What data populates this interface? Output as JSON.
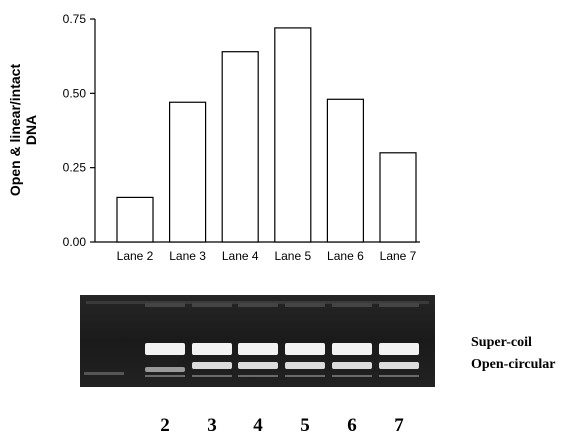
{
  "chart_data": {
    "type": "bar",
    "ylabel": "Open & linear/intact DNA",
    "ylabel_lines": [
      "Open & linear/intact",
      "DNA"
    ],
    "categories": [
      "Lane 2",
      "Lane 3",
      "Lane 4",
      "Lane 5",
      "Lane 6",
      "Lane 7"
    ],
    "values": [
      0.15,
      0.47,
      0.64,
      0.72,
      0.48,
      0.3
    ],
    "ylim": [
      0,
      0.75
    ],
    "yticks": [
      "0.00",
      "0.25",
      "0.50",
      "0.75"
    ],
    "ytick_values": [
      0,
      0.25,
      0.5,
      0.75
    ],
    "grid": false,
    "bar_fill": "#ffffff",
    "bar_stroke": "#000000"
  },
  "gel": {
    "band_labels": [
      "Super-coil",
      "Open-circular"
    ],
    "lane_numbers": [
      "2",
      "3",
      "4",
      "5",
      "6",
      "7"
    ]
  }
}
